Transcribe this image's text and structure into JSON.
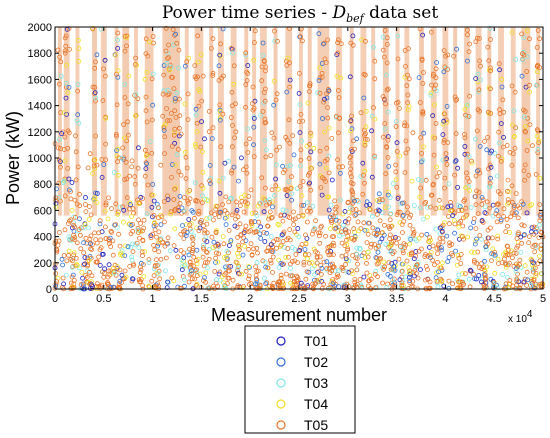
{
  "chart_data": {
    "type": "scatter",
    "title_prefix": "Power time series - ",
    "title_symbol": "D",
    "title_subscript": "bef",
    "title_suffix": " data set",
    "xlabel": "Measurement number",
    "ylabel": "Power (kW)",
    "x_multiplier_base": "x 10",
    "x_multiplier_exp": "4",
    "xlim": [
      0,
      50000
    ],
    "ylim": [
      0,
      2000
    ],
    "x_ticks": [
      {
        "value": 0,
        "label": "0"
      },
      {
        "value": 5000,
        "label": "0.5"
      },
      {
        "value": 10000,
        "label": "1"
      },
      {
        "value": 15000,
        "label": "1.5"
      },
      {
        "value": 20000,
        "label": "2"
      },
      {
        "value": 25000,
        "label": "2.5"
      },
      {
        "value": 30000,
        "label": "3"
      },
      {
        "value": 35000,
        "label": "3.5"
      },
      {
        "value": 40000,
        "label": "4"
      },
      {
        "value": 45000,
        "label": "4.5"
      },
      {
        "value": 50000,
        "label": "5"
      }
    ],
    "y_ticks": [
      {
        "value": 0,
        "label": "0"
      },
      {
        "value": 200,
        "label": "200"
      },
      {
        "value": 400,
        "label": "400"
      },
      {
        "value": 600,
        "label": "600"
      },
      {
        "value": 800,
        "label": "800"
      },
      {
        "value": 1000,
        "label": "1000"
      },
      {
        "value": 1200,
        "label": "1200"
      },
      {
        "value": 1400,
        "label": "1400"
      },
      {
        "value": 1600,
        "label": "1600"
      },
      {
        "value": 1800,
        "label": "1800"
      },
      {
        "value": 2000,
        "label": "2000"
      }
    ],
    "legend_position": "bottom-center",
    "marker": "circle-open",
    "series": [
      {
        "name": "T01",
        "color": "#1f1fbf"
      },
      {
        "name": "T02",
        "color": "#2f6fd8"
      },
      {
        "name": "T03",
        "color": "#7fe8e8"
      },
      {
        "name": "T04",
        "color": "#f0e020"
      },
      {
        "name": "T05",
        "color": "#e8752a"
      }
    ],
    "high_power_bands": [
      [
        300,
        700
      ],
      [
        900,
        1500
      ],
      [
        2100,
        2500
      ],
      [
        3800,
        4300
      ],
      [
        4700,
        5300
      ],
      [
        6100,
        6500
      ],
      [
        6900,
        7600
      ],
      [
        8100,
        8500
      ],
      [
        9200,
        10100
      ],
      [
        11000,
        12800
      ],
      [
        13300,
        13700
      ],
      [
        14300,
        15200
      ],
      [
        15800,
        16200
      ],
      [
        16700,
        17300
      ],
      [
        18000,
        18600
      ],
      [
        19400,
        19800
      ],
      [
        20200,
        20600
      ],
      [
        21000,
        21700
      ],
      [
        22400,
        22800
      ],
      [
        23600,
        24300
      ],
      [
        25000,
        25400
      ],
      [
        25900,
        26300
      ],
      [
        26900,
        28100
      ],
      [
        28800,
        29400
      ],
      [
        30200,
        30600
      ],
      [
        31300,
        31900
      ],
      [
        32400,
        32800
      ],
      [
        33600,
        34200
      ],
      [
        34900,
        35300
      ],
      [
        35800,
        36300
      ],
      [
        37300,
        37800
      ],
      [
        38500,
        39100
      ],
      [
        39700,
        40300
      ],
      [
        40800,
        41200
      ],
      [
        41900,
        42500
      ],
      [
        43100,
        43700
      ],
      [
        44300,
        44700
      ],
      [
        45400,
        46000
      ],
      [
        46700,
        47200
      ],
      [
        47800,
        48700
      ],
      [
        49300,
        49700
      ]
    ]
  }
}
